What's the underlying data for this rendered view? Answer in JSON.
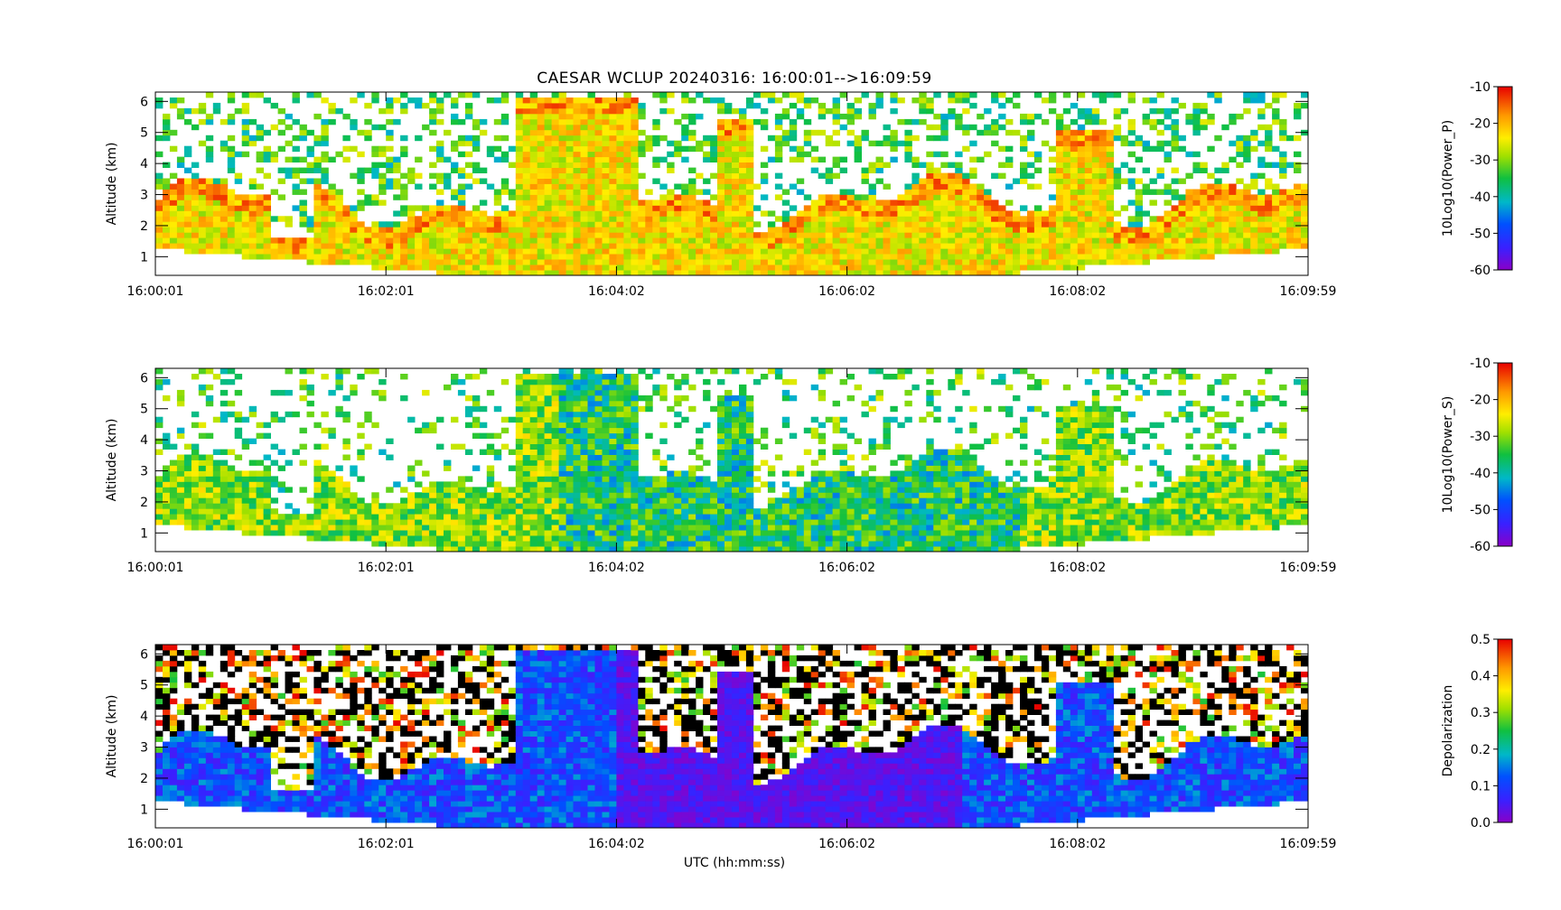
{
  "title": "CAESAR WCLUP    20240316: 16:00:01-->16:09:59",
  "xlabel": "UTC (hh:mm:ss)",
  "chart_data": [
    {
      "type": "heatmap",
      "ylabel": "Altitude (km)",
      "ylim": [
        0.4,
        6.3
      ],
      "yticks": [
        "1",
        "2",
        "3",
        "4",
        "5",
        "6"
      ],
      "xticks": [
        "16:00:01",
        "16:02:01",
        "16:04:02",
        "16:06:02",
        "16:08:02",
        "16:09:59"
      ],
      "colorbar": {
        "label": "10Log10(Power_P)",
        "range": [
          -60,
          -10
        ],
        "ticks": [
          "-10",
          "-20",
          "-30",
          "-40",
          "-50",
          "-60"
        ]
      }
    },
    {
      "type": "heatmap",
      "ylabel": "Altitude (km)",
      "ylim": [
        0.4,
        6.3
      ],
      "yticks": [
        "1",
        "2",
        "3",
        "4",
        "5",
        "6"
      ],
      "xticks": [
        "16:00:01",
        "16:02:01",
        "16:04:02",
        "16:06:02",
        "16:08:02",
        "16:09:59"
      ],
      "colorbar": {
        "label": "10Log10(Power_S)",
        "range": [
          -60,
          -10
        ],
        "ticks": [
          "-10",
          "-20",
          "-30",
          "-40",
          "-50",
          "-60"
        ]
      }
    },
    {
      "type": "heatmap",
      "ylabel": "Altitude (km)",
      "ylim": [
        0.4,
        6.3
      ],
      "yticks": [
        "1",
        "2",
        "3",
        "4",
        "5",
        "6"
      ],
      "xticks": [
        "16:00:01",
        "16:02:01",
        "16:04:02",
        "16:06:02",
        "16:08:02",
        "16:09:59"
      ],
      "colorbar": {
        "label": "Depolarization",
        "range": [
          0.0,
          0.5
        ],
        "ticks": [
          "0.5",
          "0.4",
          "0.3",
          "0.2",
          "0.1",
          "0.0"
        ]
      }
    }
  ]
}
